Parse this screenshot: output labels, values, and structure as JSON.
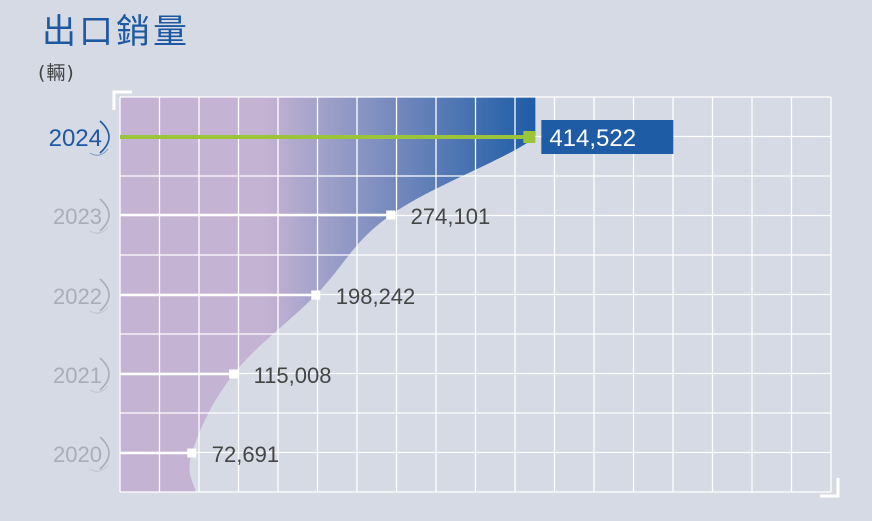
{
  "title": "出口銷量",
  "unit": "(輛)",
  "chart_data": {
    "type": "bar",
    "orientation": "horizontal",
    "categories": [
      "2024",
      "2023",
      "2022",
      "2021",
      "2020"
    ],
    "values": [
      414522,
      274101,
      198242,
      115008,
      72691
    ],
    "value_labels": [
      "414,522",
      "274,101",
      "198,242",
      "115,008",
      "72,691"
    ],
    "xlim": [
      0,
      720000
    ],
    "grid": true,
    "highlight": "2024",
    "colors": {
      "background": "#d5dae4",
      "fill_light": "#c4b3d3",
      "fill_dark": "#1e5ca6",
      "highlight_line": "#9cc43a",
      "highlight_label_bg": "#1e5ca6",
      "normal_line": "#ffffff",
      "grid": "#ffffff",
      "highlight_year": "#1d58a3",
      "normal_year": "#a8adb8",
      "value_text": "#454545"
    }
  }
}
